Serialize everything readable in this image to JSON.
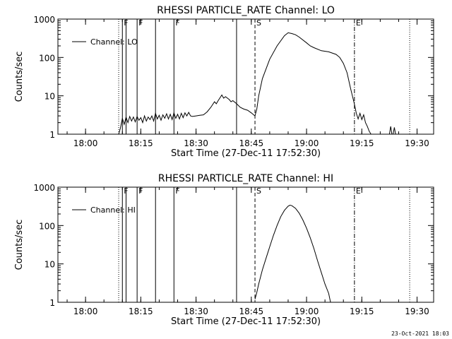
{
  "chart_data": [
    {
      "type": "line",
      "title": "RHESSI PARTICLE_RATE Channel: LO",
      "xlabel": "Start Time (27-Dec-11 17:52:30)",
      "ylabel": "Counts/sec",
      "x_ticks": [
        "18:00",
        "18:15",
        "18:30",
        "18:45",
        "19:00",
        "19:15",
        "19:30"
      ],
      "y_ticks": [
        "1",
        "10",
        "100",
        "1000"
      ],
      "xlim": [
        "17:52:30",
        "19:34:30"
      ],
      "ylim": [
        1,
        1000
      ],
      "yscale": "log",
      "grid": false,
      "legend": {
        "label": "Channel: LO",
        "position": "top-left"
      },
      "markers": [
        {
          "time": "18:09:00",
          "style": "dotted",
          "label": ""
        },
        {
          "time": "18:10:00",
          "style": "solid",
          "label": "F"
        },
        {
          "time": "18:11:00",
          "style": "solid",
          "label": ""
        },
        {
          "time": "18:14:00",
          "style": "solid",
          "label": "F"
        },
        {
          "time": "18:19:00",
          "style": "solid",
          "label": ""
        },
        {
          "time": "18:24:00",
          "style": "solid",
          "label": "F"
        },
        {
          "time": "18:41:00",
          "style": "solid",
          "label": ""
        },
        {
          "time": "18:46:00",
          "style": "dashed",
          "label": "S"
        },
        {
          "time": "19:13:00",
          "style": "dashdot",
          "label": "E"
        },
        {
          "time": "19:28:00",
          "style": "dotted",
          "label": ""
        }
      ],
      "series": [
        {
          "name": "Channel: LO",
          "segments": [
            {
              "points": [
                [
                  "18:09:00",
                  1
                ],
                [
                  "18:09:30",
                  1.5
                ],
                [
                  "18:10:00",
                  2.6
                ],
                [
                  "18:10:30",
                  1.8
                ],
                [
                  "18:11:00",
                  2.8
                ],
                [
                  "18:11:30",
                  2.0
                ],
                [
                  "18:12:00",
                  2.9
                ],
                [
                  "18:12:30",
                  2.2
                ],
                [
                  "18:13:00",
                  2.8
                ],
                [
                  "18:13:30",
                  2.1
                ],
                [
                  "18:14:00",
                  2.9
                ],
                [
                  "18:14:30",
                  2.3
                ],
                [
                  "18:15:00",
                  2.7
                ],
                [
                  "18:15:30",
                  2.0
                ],
                [
                  "18:16:00",
                  3.0
                ],
                [
                  "18:16:30",
                  2.2
                ],
                [
                  "18:17:00",
                  2.8
                ],
                [
                  "18:17:30",
                  2.4
                ],
                [
                  "18:18:00",
                  3.0
                ],
                [
                  "18:18:30",
                  2.2
                ],
                [
                  "18:19:00",
                  3.5
                ],
                [
                  "18:19:30",
                  2.5
                ],
                [
                  "18:20:00",
                  3.1
                ],
                [
                  "18:20:30",
                  2.3
                ],
                [
                  "18:21:00",
                  3.2
                ],
                [
                  "18:21:30",
                  2.6
                ],
                [
                  "18:22:00",
                  3.4
                ],
                [
                  "18:22:30",
                  2.5
                ],
                [
                  "18:23:00",
                  3.3
                ],
                [
                  "18:23:30",
                  2.4
                ],
                [
                  "18:24:00",
                  3.6
                ],
                [
                  "18:24:30",
                  2.6
                ],
                [
                  "18:25:00",
                  3.3
                ],
                [
                  "18:25:30",
                  2.5
                ],
                [
                  "18:26:00",
                  3.5
                ],
                [
                  "18:26:30",
                  2.7
                ],
                [
                  "18:27:00",
                  3.6
                ],
                [
                  "18:27:30",
                  3.0
                ],
                [
                  "18:28:00",
                  3.7
                ],
                [
                  "18:28:30",
                  3.0
                ],
                [
                  "18:29:00",
                  2.9
                ],
                [
                  "18:30:00",
                  3.0
                ],
                [
                  "18:31:00",
                  3.1
                ],
                [
                  "18:32:00",
                  3.2
                ],
                [
                  "18:33:00",
                  3.8
                ],
                [
                  "18:34:00",
                  5.0
                ],
                [
                  "18:35:00",
                  7.0
                ],
                [
                  "18:35:30",
                  6.2
                ],
                [
                  "18:36:00",
                  7.5
                ],
                [
                  "18:37:00",
                  10.5
                ],
                [
                  "18:37:30",
                  8.7
                ],
                [
                  "18:38:00",
                  9.5
                ],
                [
                  "18:39:00",
                  8.0
                ],
                [
                  "18:39:30",
                  7.0
                ],
                [
                  "18:40:00",
                  7.5
                ],
                [
                  "18:41:00",
                  6.2
                ],
                [
                  "18:42:00",
                  5.0
                ],
                [
                  "18:43:00",
                  4.5
                ],
                [
                  "18:44:00",
                  4.2
                ],
                [
                  "18:45:00",
                  3.6
                ],
                [
                  "18:46:00",
                  3.0
                ],
                [
                  "18:46:30",
                  4.5
                ],
                [
                  "18:47:00",
                  10
                ],
                [
                  "18:48:00",
                  28
                ],
                [
                  "18:50:00",
                  90
                ],
                [
                  "18:52:00",
                  200
                ],
                [
                  "18:54:00",
                  370
                ],
                [
                  "18:55:00",
                  440
                ],
                [
                  "18:56:00",
                  420
                ],
                [
                  "18:57:00",
                  390
                ],
                [
                  "18:58:00",
                  340
                ],
                [
                  "19:00:00",
                  240
                ],
                [
                  "19:01:00",
                  200
                ],
                [
                  "19:02:00",
                  180
                ],
                [
                  "19:04:00",
                  150
                ],
                [
                  "19:06:00",
                  140
                ],
                [
                  "19:08:00",
                  120
                ],
                [
                  "19:09:00",
                  100
                ],
                [
                  "19:10:00",
                  70
                ],
                [
                  "19:11:00",
                  40
                ],
                [
                  "19:12:00",
                  15
                ],
                [
                  "19:13:00",
                  6
                ],
                [
                  "19:13:30",
                  3.5
                ],
                [
                  "19:14:00",
                  2.5
                ],
                [
                  "19:14:30",
                  3.5
                ],
                [
                  "19:15:00",
                  2.4
                ],
                [
                  "19:15:30",
                  3.2
                ],
                [
                  "19:16:00",
                  2.0
                ],
                [
                  "19:16:30",
                  1.6
                ],
                [
                  "19:17:00",
                  1.2
                ],
                [
                  "19:17:30",
                  1.0
                ]
              ]
            },
            {
              "points": [
                [
                  "19:22:30",
                  1.0
                ],
                [
                  "19:22:50",
                  1.6
                ],
                [
                  "19:23:10",
                  1.0
                ]
              ]
            },
            {
              "points": [
                [
                  "19:23:30",
                  1.0
                ],
                [
                  "19:23:50",
                  1.5
                ],
                [
                  "19:24:10",
                  1.0
                ]
              ]
            }
          ]
        }
      ]
    },
    {
      "type": "line",
      "title": "RHESSI PARTICLE_RATE Channel: HI",
      "xlabel": "Start Time (27-Dec-11 17:52:30)",
      "ylabel": "Counts/sec",
      "x_ticks": [
        "18:00",
        "18:15",
        "18:30",
        "18:45",
        "19:00",
        "19:15",
        "19:30"
      ],
      "y_ticks": [
        "1",
        "10",
        "100",
        "1000"
      ],
      "xlim": [
        "17:52:30",
        "19:34:30"
      ],
      "ylim": [
        1,
        1000
      ],
      "yscale": "log",
      "grid": false,
      "legend": {
        "label": "Channel: HI",
        "position": "top-left"
      },
      "markers": [
        {
          "time": "18:09:00",
          "style": "dotted",
          "label": ""
        },
        {
          "time": "18:10:00",
          "style": "solid",
          "label": "F"
        },
        {
          "time": "18:11:00",
          "style": "solid",
          "label": ""
        },
        {
          "time": "18:14:00",
          "style": "solid",
          "label": "F"
        },
        {
          "time": "18:19:00",
          "style": "solid",
          "label": ""
        },
        {
          "time": "18:24:00",
          "style": "solid",
          "label": "F"
        },
        {
          "time": "18:41:00",
          "style": "solid",
          "label": ""
        },
        {
          "time": "18:46:00",
          "style": "dashed",
          "label": "S"
        },
        {
          "time": "19:13:00",
          "style": "dashdot",
          "label": "E"
        },
        {
          "time": "19:28:00",
          "style": "dotted",
          "label": ""
        }
      ],
      "series": [
        {
          "name": "Channel: HI",
          "segments": [
            {
              "points": [
                [
                  "18:46:00",
                  1.2
                ],
                [
                  "18:46:30",
                  1.8
                ],
                [
                  "18:47:00",
                  3.0
                ],
                [
                  "18:48:00",
                  7.0
                ],
                [
                  "18:49:00",
                  14
                ],
                [
                  "18:50:00",
                  28
                ],
                [
                  "18:51:00",
                  55
                ],
                [
                  "18:52:00",
                  100
                ],
                [
                  "18:53:00",
                  170
                ],
                [
                  "18:54:00",
                  250
                ],
                [
                  "18:55:00",
                  320
                ],
                [
                  "18:55:30",
                  340
                ],
                [
                  "18:56:00",
                  330
                ],
                [
                  "18:57:00",
                  280
                ],
                [
                  "18:58:00",
                  210
                ],
                [
                  "18:59:00",
                  140
                ],
                [
                  "19:00:00",
                  85
                ],
                [
                  "19:01:00",
                  48
                ],
                [
                  "19:02:00",
                  25
                ],
                [
                  "19:03:00",
                  12
                ],
                [
                  "19:04:00",
                  6
                ],
                [
                  "19:05:00",
                  3
                ],
                [
                  "19:06:00",
                  1.7
                ],
                [
                  "19:06:30",
                  1.0
                ]
              ]
            }
          ]
        }
      ]
    }
  ],
  "footer": "23-Oct-2021 18:03"
}
